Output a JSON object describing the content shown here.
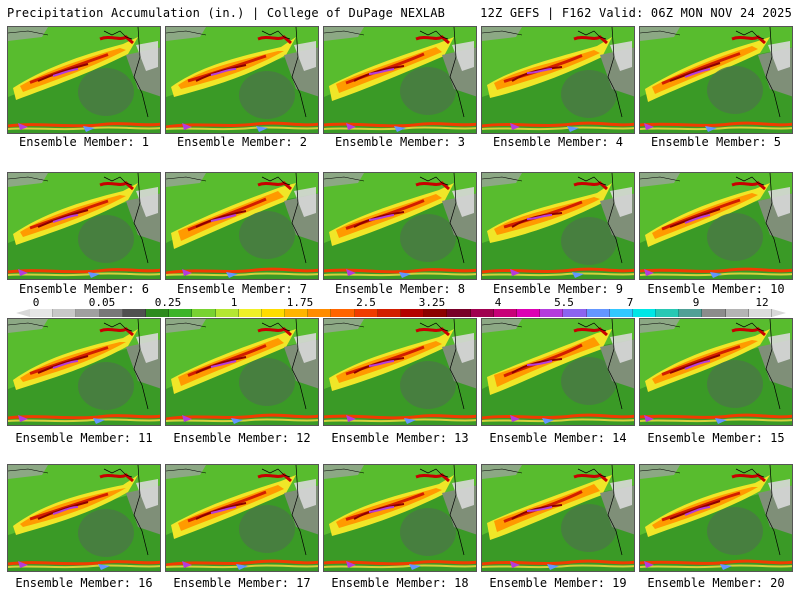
{
  "header": {
    "title": "Precipitation Accumulation (in.) | College of DuPage NEXLAB",
    "run_info": "12Z GEFS | F162 Valid: 06Z MON NOV 24 2025"
  },
  "members": [
    "Ensemble Member: 1",
    "Ensemble Member: 2",
    "Ensemble Member: 3",
    "Ensemble Member: 4",
    "Ensemble Member: 5",
    "Ensemble Member: 6",
    "Ensemble Member: 7",
    "Ensemble Member: 8",
    "Ensemble Member: 9",
    "Ensemble Member: 10",
    "Ensemble Member: 11",
    "Ensemble Member: 12",
    "Ensemble Member: 13",
    "Ensemble Member: 14",
    "Ensemble Member: 15",
    "Ensemble Member: 16",
    "Ensemble Member: 17",
    "Ensemble Member: 18",
    "Ensemble Member: 19",
    "Ensemble Member: 20"
  ],
  "legend": {
    "tick_labels": [
      "0",
      "0.05",
      "0.25",
      "1",
      "1.75",
      "2.5",
      "3.25",
      "4",
      "5.5",
      "7",
      "9",
      "12"
    ],
    "colors": [
      "#e6e6e6",
      "#c8c8c8",
      "#a0a0a0",
      "#787878",
      "#505050",
      "#2e8b1e",
      "#3cb428",
      "#78d232",
      "#b4e632",
      "#f0f028",
      "#ffdc00",
      "#ffb400",
      "#ff8c00",
      "#ff6400",
      "#f03c00",
      "#d21e00",
      "#b40000",
      "#8c0000",
      "#780028",
      "#a00050",
      "#c80078",
      "#dc00b4",
      "#b43cdc",
      "#8c64f0",
      "#6496ff",
      "#32c8ff",
      "#00e6e6",
      "#28c8b4",
      "#50a096",
      "#8c8c8c",
      "#b4b4b4",
      "#dcdcdc"
    ]
  }
}
